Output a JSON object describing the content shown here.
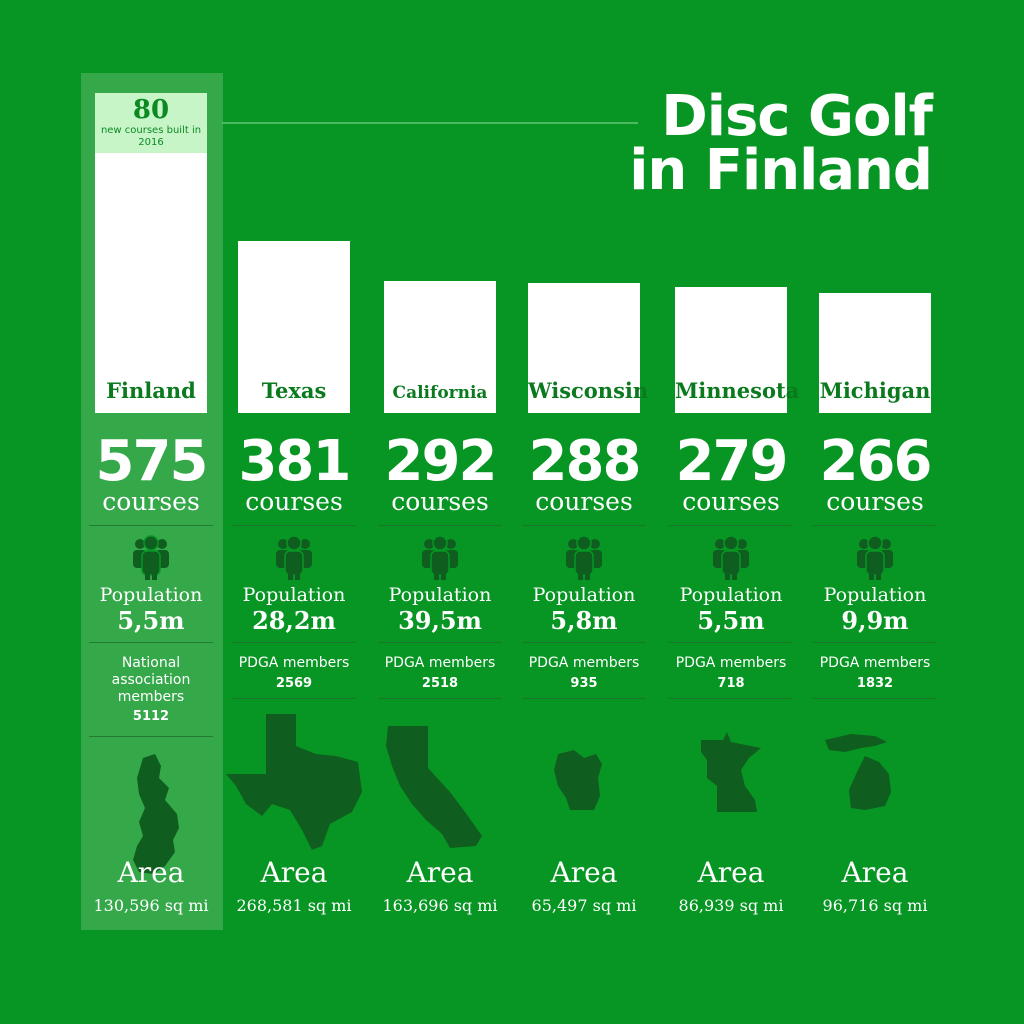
{
  "title_line1": "Disc Golf",
  "title_line2": "in Finland",
  "badge": {
    "value": "80",
    "text": "new courses built in 2016"
  },
  "colors": {
    "background": "#079624",
    "highlight": "#35a84a",
    "bar": "#ffffff",
    "label": "#0b7a1f",
    "icon": "#0f5e1f",
    "badge": "#c8f5c8"
  },
  "chart_data": {
    "type": "bar",
    "categories": [
      "Finland",
      "Texas",
      "California",
      "Wisconsin",
      "Minnesota",
      "Michigan"
    ],
    "values": [
      575,
      381,
      292,
      288,
      279,
      266
    ],
    "unit_label": "courses",
    "title": "Disc Golf in Finland",
    "xlabel": "",
    "ylabel": "",
    "ylim": [
      0,
      575
    ],
    "grid": false,
    "legend": "none"
  },
  "regions": [
    {
      "name": "Finland",
      "courses": "575",
      "population": "5,5m",
      "members_label": "National association members",
      "members": "5112",
      "area": "130,596 sq mi",
      "map_icon": "finland-map-icon"
    },
    {
      "name": "Texas",
      "courses": "381",
      "population": "28,2m",
      "members_label": "PDGA members",
      "members": "2569",
      "area": "268,581 sq mi",
      "map_icon": "texas-map-icon"
    },
    {
      "name": "California",
      "courses": "292",
      "population": "39,5m",
      "members_label": "PDGA members",
      "members": "2518",
      "area": "163,696 sq mi",
      "map_icon": "california-map-icon"
    },
    {
      "name": "Wisconsin",
      "courses": "288",
      "population": "5,8m",
      "members_label": "PDGA members",
      "members": "935",
      "area": "65,497 sq mi",
      "map_icon": "wisconsin-map-icon"
    },
    {
      "name": "Minnesota",
      "courses": "279",
      "population": "5,5m",
      "members_label": "PDGA members",
      "members": "718",
      "area": "86,939 sq mi",
      "map_icon": "minnesota-map-icon"
    },
    {
      "name": "Michigan",
      "courses": "266",
      "population": "9,9m",
      "members_label": "PDGA members",
      "members": "1832",
      "area": "96,716 sq mi",
      "map_icon": "michigan-map-icon"
    }
  ],
  "labels": {
    "courses": "courses",
    "population": "Population",
    "area": "Area"
  },
  "people_icon": "people-group-icon"
}
